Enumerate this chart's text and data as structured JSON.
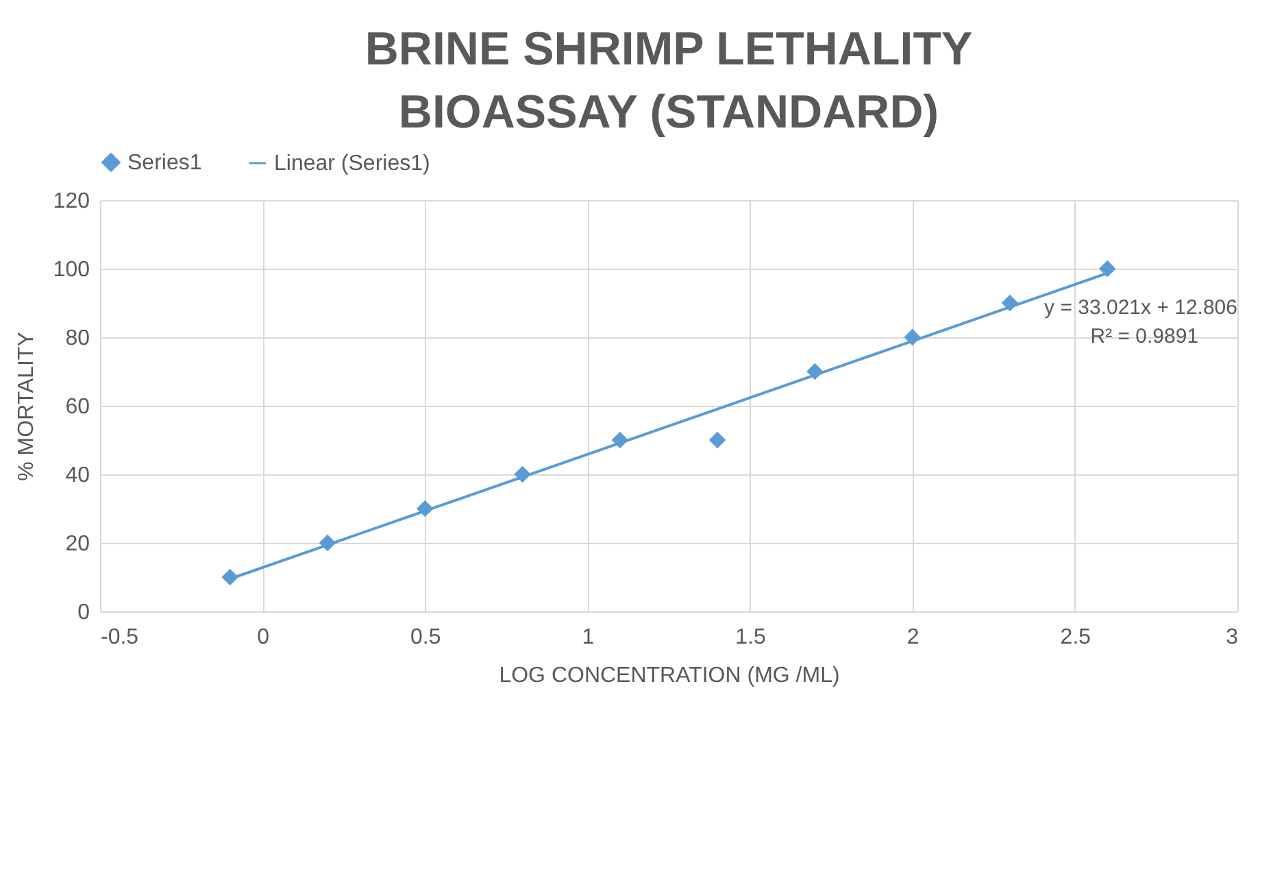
{
  "chart_data": {
    "type": "scatter",
    "title": "BRINE SHRIMP LETHALITY BIOASSAY (STANDARD)",
    "xlabel": "LOG CONCENTRATION (MG /ML)",
    "ylabel": "% MORTALITY",
    "x": [
      -0.1,
      0.2,
      0.5,
      0.8,
      1.1,
      1.4,
      1.7,
      2.0,
      2.3,
      2.6
    ],
    "series": [
      {
        "name": "Series1",
        "color": "#5b9bd5",
        "marker": "diamond",
        "values": [
          10,
          20,
          30,
          40,
          50,
          50,
          70,
          80,
          90,
          100
        ]
      },
      {
        "name": "Linear (Series1)",
        "type": "line",
        "color": "#5b9bd5",
        "x": [
          -0.1,
          2.6
        ],
        "values": [
          9.5,
          98.7
        ]
      }
    ],
    "annotations": [
      "y = 33.021x + 12.806",
      "R² = 0.9891"
    ],
    "xlim": [
      -0.5,
      3
    ],
    "ylim": [
      0,
      120
    ],
    "xticks": [
      -0.5,
      0,
      0.5,
      1,
      1.5,
      2,
      2.5,
      3
    ],
    "yticks": [
      0,
      20,
      40,
      60,
      80,
      100,
      120
    ],
    "grid": true,
    "legend": "top"
  }
}
